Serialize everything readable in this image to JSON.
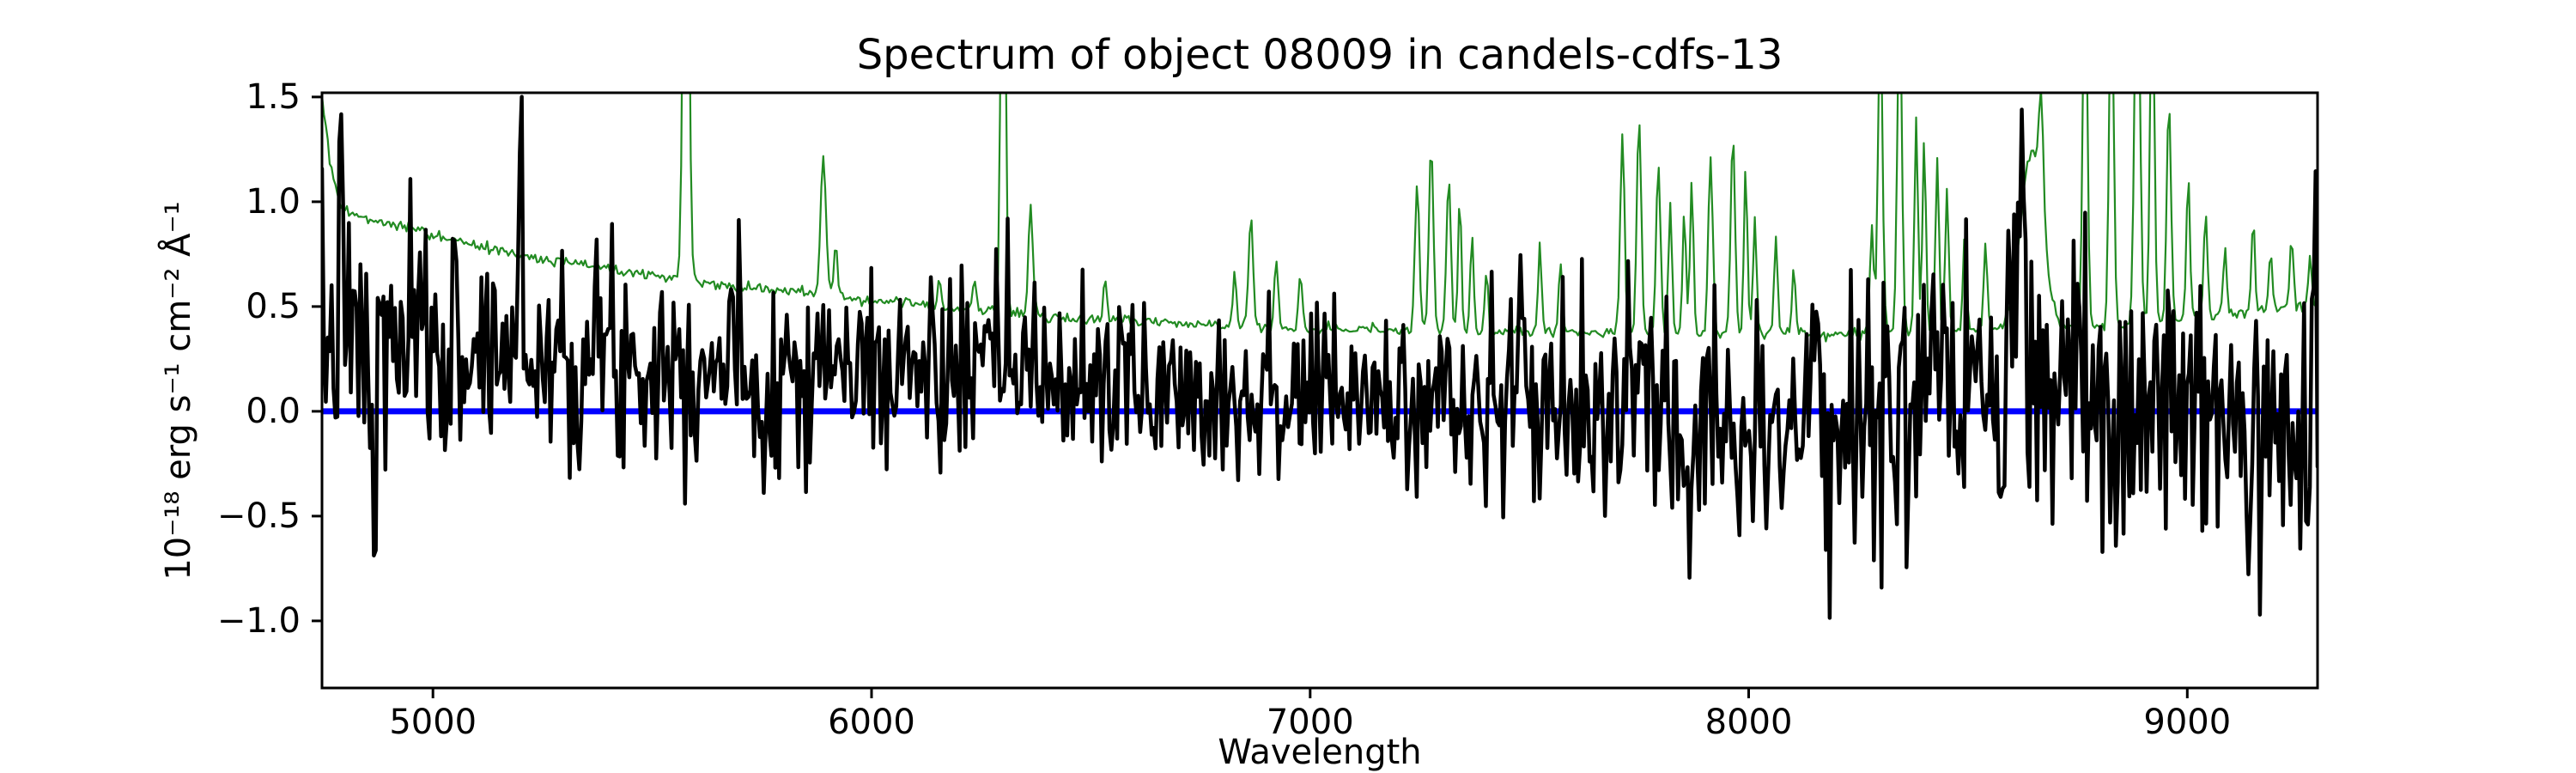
{
  "figure": {
    "title": "Spectrum of object 08009 in candels-cdfs-13",
    "background": "#ffffff"
  },
  "chart_data": {
    "type": "line",
    "title": "Spectrum of object 08009 in candels-cdfs-13",
    "xlabel": "Wavelength",
    "ylabel": "10⁻¹⁸ erg s⁻¹ cm⁻² Å⁻¹",
    "xlim": [
      4747,
      9297
    ],
    "ylim": [
      -1.32,
      1.52
    ],
    "grid": false,
    "legend": null,
    "frame_color": "#000000",
    "xticks": [
      {
        "value": 5000,
        "label": "5000"
      },
      {
        "value": 6000,
        "label": "6000"
      },
      {
        "value": 7000,
        "label": "7000"
      },
      {
        "value": 8000,
        "label": "8000"
      },
      {
        "value": 9000,
        "label": "9000"
      }
    ],
    "yticks": [
      {
        "value": 1.5,
        "label": "1.5"
      },
      {
        "value": 1.0,
        "label": "1.0"
      },
      {
        "value": 0.5,
        "label": "0.5"
      },
      {
        "value": 0.0,
        "label": "0.0"
      },
      {
        "value": -0.5,
        "label": "−0.5"
      },
      {
        "value": -1.0,
        "label": "−1.0"
      }
    ],
    "series": [
      {
        "name": "zero-line",
        "role": "axhline",
        "color": "#0000ff",
        "linewidth": 7,
        "y": 0.0
      },
      {
        "name": "noise-sky-spectrum",
        "role": "error-spectrum",
        "color": "#228B22",
        "linewidth": 2.2,
        "n_points": 1040,
        "noise_seed": 99,
        "noise_sigma": 0.013,
        "baseline": [
          [
            4747,
            1.5
          ],
          [
            4765,
            1.18
          ],
          [
            4790,
            0.97
          ],
          [
            4850,
            0.92
          ],
          [
            4950,
            0.87
          ],
          [
            5050,
            0.81
          ],
          [
            5150,
            0.77
          ],
          [
            5250,
            0.73
          ],
          [
            5400,
            0.68
          ],
          [
            5550,
            0.63
          ],
          [
            5700,
            0.59
          ],
          [
            5890,
            0.56
          ],
          [
            6000,
            0.53
          ],
          [
            6150,
            0.5
          ],
          [
            6300,
            0.47
          ],
          [
            6500,
            0.44
          ],
          [
            6700,
            0.42
          ],
          [
            6900,
            0.4
          ],
          [
            7100,
            0.39
          ],
          [
            7400,
            0.38
          ],
          [
            7800,
            0.37
          ],
          [
            8200,
            0.37
          ],
          [
            8560,
            0.39
          ],
          [
            8700,
            0.4
          ],
          [
            8900,
            0.41
          ],
          [
            9000,
            0.44
          ],
          [
            9150,
            0.48
          ],
          [
            9297,
            0.5
          ]
        ],
        "spikes_gaussian": [
          [
            5577,
            3.0,
            6
          ],
          [
            5890,
            0.66,
            6
          ],
          [
            5918,
            0.25,
            4
          ],
          [
            6155,
            0.12,
            4
          ],
          [
            6235,
            0.16,
            4
          ],
          [
            6300,
            2.6,
            5
          ],
          [
            6363,
            0.52,
            5
          ],
          [
            6533,
            0.2,
            4
          ],
          [
            6828,
            0.27,
            4
          ],
          [
            6865,
            0.52,
            5
          ],
          [
            6923,
            0.34,
            4
          ],
          [
            6978,
            0.26,
            4
          ],
          [
            7244,
            0.72,
            5
          ],
          [
            7276,
            0.88,
            5
          ],
          [
            7316,
            0.72,
            5
          ],
          [
            7341,
            0.62,
            4
          ],
          [
            7369,
            0.45,
            4
          ],
          [
            7402,
            0.28,
            4
          ],
          [
            7524,
            0.42,
            4
          ],
          [
            7571,
            0.33,
            4
          ],
          [
            7712,
            0.95,
            5
          ],
          [
            7750,
            1.05,
            5
          ],
          [
            7794,
            0.8,
            5
          ],
          [
            7821,
            0.62,
            4
          ],
          [
            7853,
            0.58,
            4
          ],
          [
            7870,
            0.72,
            4
          ],
          [
            7913,
            0.85,
            5
          ],
          [
            7964,
            0.95,
            5
          ],
          [
            7993,
            0.78,
            4
          ],
          [
            8014,
            0.58,
            4
          ],
          [
            8062,
            0.45,
            4
          ],
          [
            8103,
            0.32,
            4
          ],
          [
            8281,
            0.52,
            4
          ],
          [
            8300,
            1.55,
            5
          ],
          [
            8344,
            1.65,
            5
          ],
          [
            8382,
            1.05,
            4
          ],
          [
            8400,
            0.92,
            4
          ],
          [
            8430,
            0.82,
            4
          ],
          [
            8452,
            0.68,
            4
          ],
          [
            8493,
            0.48,
            4
          ],
          [
            8540,
            0.4,
            4
          ],
          [
            8645,
            0.85,
            25
          ],
          [
            8667,
            0.55,
            5
          ],
          [
            8767,
            1.85,
            5
          ],
          [
            8827,
            1.75,
            5
          ],
          [
            8886,
            1.95,
            6
          ],
          [
            8920,
            1.65,
            5
          ],
          [
            8958,
            1.05,
            5
          ],
          [
            9002,
            0.72,
            4
          ],
          [
            9042,
            0.52,
            4
          ],
          [
            9086,
            0.32,
            4
          ],
          [
            9150,
            0.42,
            4
          ],
          [
            9190,
            0.28,
            4
          ],
          [
            9238,
            0.33,
            4
          ],
          [
            9280,
            0.24,
            4
          ]
        ]
      },
      {
        "name": "object-flux-spectrum",
        "role": "flux-spectrum",
        "color": "#000000",
        "linewidth": 4.5,
        "n_points": 1040,
        "noise_seed": 7,
        "mean_envelope": [
          [
            4747,
            0.33
          ],
          [
            5000,
            0.3
          ],
          [
            5400,
            0.27
          ],
          [
            5800,
            0.23
          ],
          [
            6200,
            0.18
          ],
          [
            6600,
            0.12
          ],
          [
            7000,
            0.07
          ],
          [
            7400,
            0.03
          ],
          [
            7800,
            0.01
          ],
          [
            8200,
            0.0
          ],
          [
            8600,
            0.03
          ],
          [
            9000,
            0.01
          ],
          [
            9297,
            0.06
          ]
        ],
        "noise_sigma_envelope": [
          [
            4747,
            0.3
          ],
          [
            5200,
            0.27
          ],
          [
            5700,
            0.24
          ],
          [
            6200,
            0.22
          ],
          [
            6700,
            0.2
          ],
          [
            7200,
            0.2
          ],
          [
            7600,
            0.26
          ],
          [
            8000,
            0.3
          ],
          [
            8400,
            0.34
          ],
          [
            8800,
            0.33
          ],
          [
            9100,
            0.36
          ],
          [
            9297,
            0.36
          ]
        ],
        "features_gaussian": [
          [
            4790,
            0.75,
            4
          ],
          [
            4865,
            -0.95,
            5
          ],
          [
            5200,
            0.85,
            5
          ],
          [
            5755,
            -0.6,
            5
          ],
          [
            6310,
            0.5,
            4
          ],
          [
            7480,
            0.7,
            4
          ],
          [
            7610,
            -0.5,
            4
          ],
          [
            8010,
            -0.65,
            5
          ],
          [
            8180,
            -0.7,
            5
          ],
          [
            8620,
            1.15,
            10
          ],
          [
            9140,
            -0.75,
            5
          ],
          [
            9290,
            0.85,
            4
          ]
        ]
      }
    ]
  }
}
